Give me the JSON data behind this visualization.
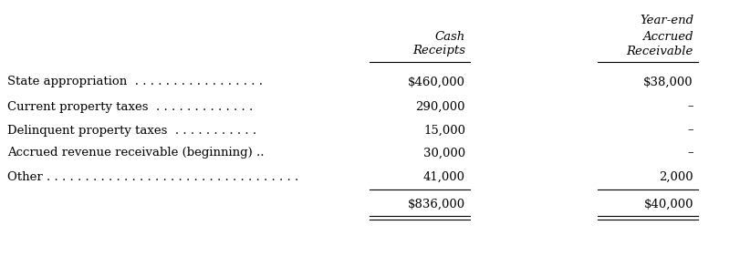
{
  "col2_header_line1": "Cash",
  "col2_header_line2": "Receipts",
  "col3_header_line1": "Year-end",
  "col3_header_line2": "Accrued",
  "col3_header_line3": "Receivable",
  "label_texts": [
    "State appropriation  . . . . . . . . . . . . . . . . .",
    "Current property taxes  . . . . . . . . . . . . .",
    "Delinquent property taxes  . . . . . . . . . . .",
    "Accrued revenue receivable (beginning) ..",
    "Other . . . . . . . . . . . . . . . . . . . . . . . . . . . . . . . . ."
  ],
  "col2_values": [
    "$460,000",
    "290,000",
    "15,000",
    "30,000",
    "41,000"
  ],
  "col3_values": [
    "$38,000",
    "–",
    "–",
    "–",
    "2,000"
  ],
  "total_col2": "$836,000",
  "total_col3": "$40,000",
  "bg_color": "#ffffff",
  "text_color": "#000000",
  "font_size": 9.5,
  "header_font_size": 9.5
}
